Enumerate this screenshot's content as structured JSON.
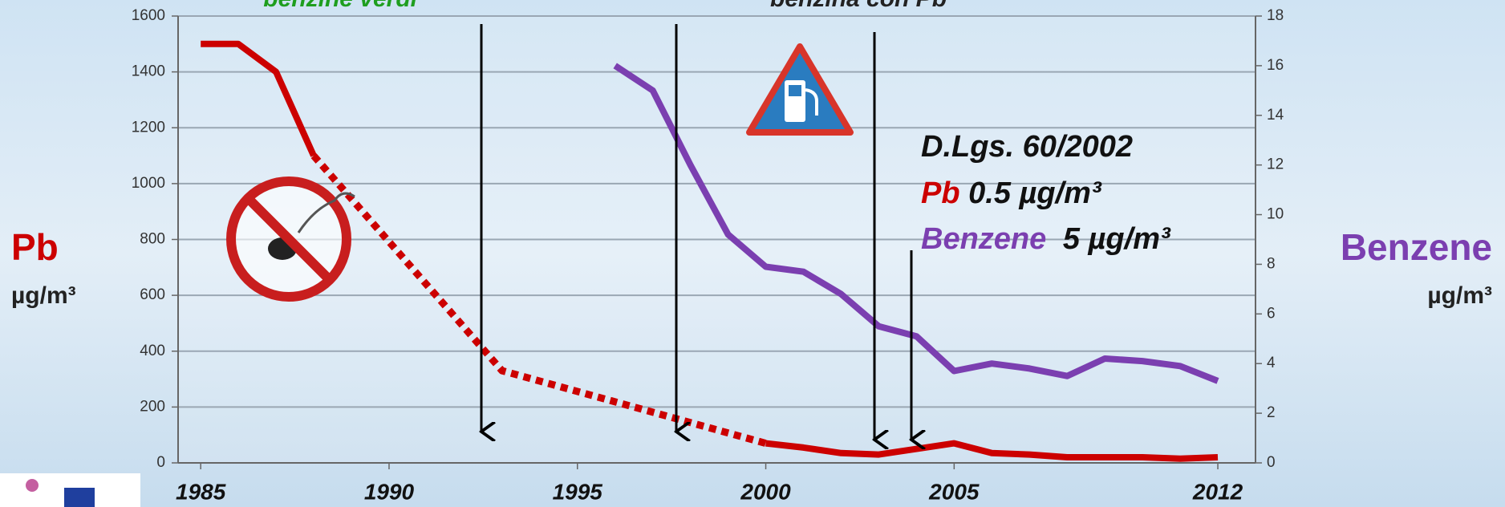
{
  "chart_data": {
    "type": "line",
    "top_labels": [
      "benzine verdi",
      "benzina con Pb"
    ],
    "ylabel": "Pb",
    "ylabel_unit": "µg/m³",
    "y2label": "Benzene",
    "y2label_unit": "µg/m³",
    "xlim": [
      1984.4,
      2013.0
    ],
    "xticks": [
      1985,
      1990,
      1995,
      2000,
      2005,
      2012
    ],
    "ylim": [
      0,
      1600
    ],
    "yticks": [
      0,
      200,
      400,
      600,
      800,
      1000,
      1200,
      1400,
      1600
    ],
    "y2lim": [
      0,
      18
    ],
    "y2ticks": [
      0,
      2,
      4,
      6,
      8,
      10,
      12,
      14,
      16,
      18
    ],
    "grid": true,
    "series": [
      {
        "color": "#cc0000",
        "style": "solid",
        "axis": "y",
        "x": [
          1985,
          1986,
          1987,
          1988
        ],
        "values": [
          1500,
          1500,
          1400,
          1100
        ]
      },
      {
        "color": "#cc0000",
        "style": "dotted",
        "axis": "y",
        "x": [
          1988,
          1993,
          2000
        ],
        "values": [
          1100,
          330,
          70
        ]
      },
      {
        "color": "#cc0000",
        "style": "solid",
        "axis": "y",
        "x": [
          2000,
          2001,
          2002,
          2003,
          2004,
          2005,
          2006,
          2007,
          2008,
          2009,
          2010,
          2011,
          2012
        ],
        "values": [
          70,
          55,
          35,
          30,
          50,
          70,
          35,
          30,
          20,
          20,
          20,
          15,
          20
        ]
      },
      {
        "color": "#7b3fb0",
        "style": "solid",
        "axis": "y2",
        "x": [
          1996,
          1997,
          1998,
          1999,
          2000,
          2001,
          2002,
          2003,
          2004,
          2005,
          2006,
          2007,
          2008,
          2009,
          2010,
          2011,
          2012
        ],
        "values": [
          16.0,
          15.0,
          12.0,
          9.2,
          7.9,
          7.7,
          6.8,
          5.5,
          5.1,
          3.7,
          4.0,
          3.8,
          3.5,
          4.2,
          4.1,
          3.9,
          3.3
        ]
      }
    ],
    "annotation": {
      "title": "D.Lgs. 60/2002",
      "lines": [
        {
          "pollutant": "Pb",
          "limit": "0.5 µg/m³"
        },
        {
          "pollutant": "Benzene",
          "limit": "5 µg/m³"
        }
      ]
    }
  }
}
